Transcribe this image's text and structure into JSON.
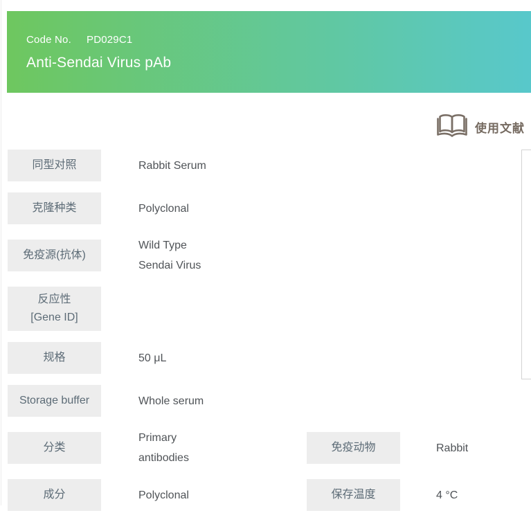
{
  "header": {
    "code_label": "Code No.",
    "code_value": "PD029C1",
    "product_name": "Anti-Sendai Virus pAb"
  },
  "references": {
    "label": "使用文献",
    "icon": "open-book-icon"
  },
  "spec_table": {
    "rows": [
      {
        "label_lines": [
          "同型对照"
        ],
        "value_lines": [
          "Rabbit Serum"
        ]
      },
      {
        "label_lines": [
          "克隆种类"
        ],
        "value_lines": [
          "Polyclonal"
        ]
      },
      {
        "label_lines": [
          "免疫源(抗体)"
        ],
        "value_lines": [
          "Wild Type",
          "Sendai Virus"
        ]
      },
      {
        "label_lines": [
          "反应性",
          "[Gene ID]"
        ],
        "value_lines": []
      },
      {
        "label_lines": [
          "规格"
        ],
        "value_lines": [
          "50 μL"
        ]
      },
      {
        "label_lines": [
          "Storage buffer"
        ],
        "value_lines": [
          "Whole serum"
        ]
      },
      {
        "label_lines": [
          "分类"
        ],
        "value_lines": [
          "Primary",
          "antibodies"
        ],
        "col2": {
          "label_lines": [
            "免疫动物"
          ],
          "value_lines": [
            "Rabbit"
          ]
        }
      },
      {
        "label_lines": [
          "成分"
        ],
        "value_lines": [
          "Polyclonal"
        ],
        "col2": {
          "label_lines": [
            "保存温度"
          ],
          "value_lines": [
            "4 °C"
          ]
        }
      }
    ]
  },
  "colors": {
    "banner_gradient_start": "#6ec75f",
    "banner_gradient_end": "#58c8cb",
    "label_background": "#ededed",
    "label_text": "#5c6b76",
    "value_text": "#4f5357",
    "references_text": "#756a60",
    "panel_border": "#d3d3d3"
  }
}
